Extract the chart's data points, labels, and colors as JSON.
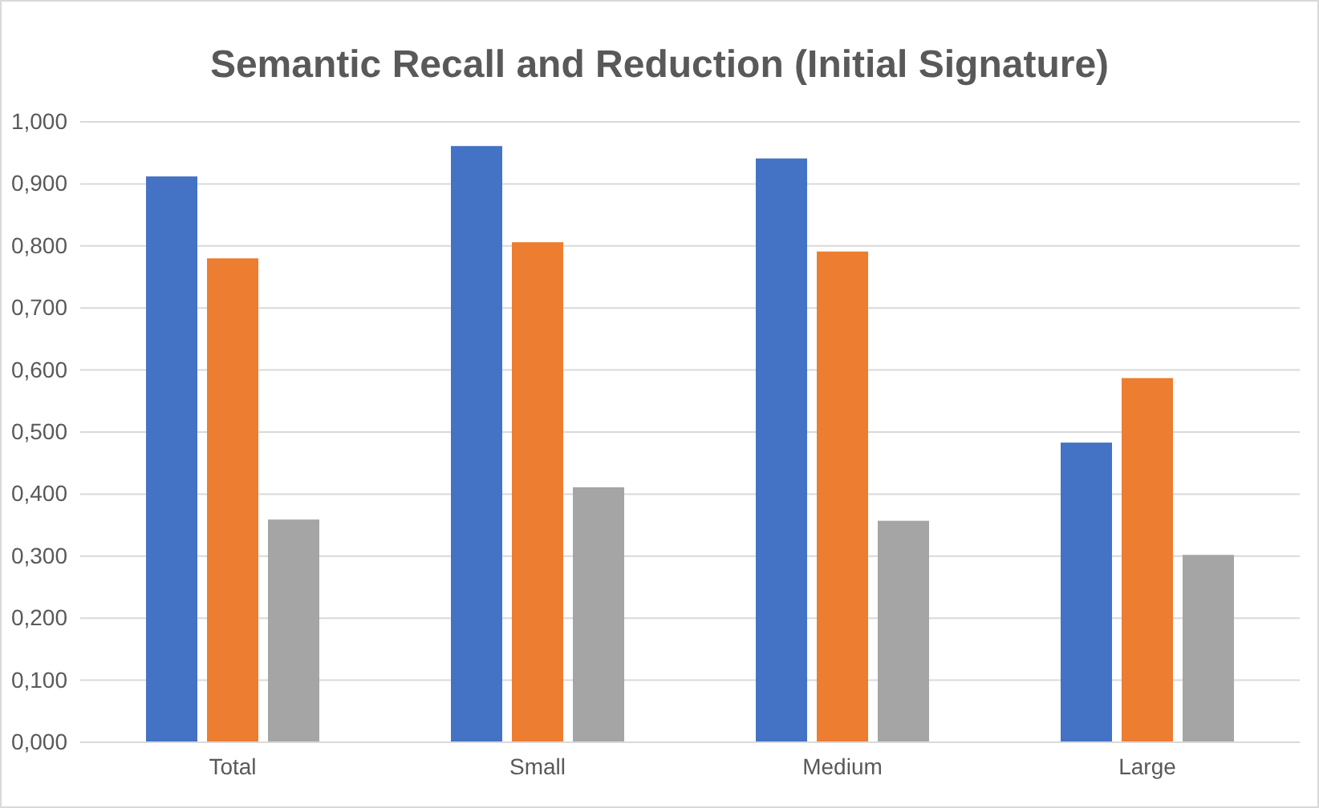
{
  "chart_data": {
    "type": "bar",
    "title": "Semantic Recall and Reduction (Initial Signature)",
    "categories": [
      "Total",
      "Small",
      "Medium",
      "Large"
    ],
    "series": [
      {
        "color": "#4472c4",
        "values": [
          0.912,
          0.961,
          0.941,
          0.483
        ]
      },
      {
        "color": "#ed7d31",
        "values": [
          0.78,
          0.806,
          0.791,
          0.587
        ]
      },
      {
        "color": "#a5a5a5",
        "values": [
          0.359,
          0.411,
          0.357,
          0.302
        ]
      }
    ],
    "ylim": [
      0,
      1
    ],
    "yticks": [
      {
        "value": 0,
        "label": "0,000"
      },
      {
        "value": 0.1,
        "label": "0,100"
      },
      {
        "value": 0.2,
        "label": "0,200"
      },
      {
        "value": 0.3,
        "label": "0,300"
      },
      {
        "value": 0.4,
        "label": "0,400"
      },
      {
        "value": 0.5,
        "label": "0,500"
      },
      {
        "value": 0.6,
        "label": "0,600"
      },
      {
        "value": 0.7,
        "label": "0,700"
      },
      {
        "value": 0.8,
        "label": "0,800"
      },
      {
        "value": 0.9,
        "label": "0,900"
      },
      {
        "value": 1,
        "label": "1,000"
      }
    ],
    "grid": "y"
  }
}
